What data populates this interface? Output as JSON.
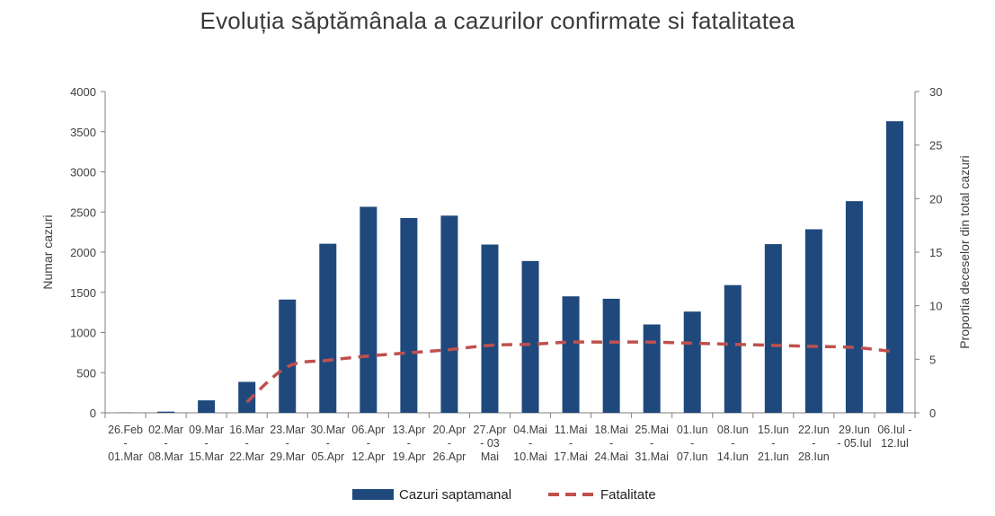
{
  "chart_data": {
    "type": "bar",
    "title": "Evoluția săptămânala a cazurilor confirmate si fatalitatea",
    "ylabel": "Numar cazuri",
    "y2label": "Proportia deceselor din total cazuri",
    "ylim": [
      0,
      4000
    ],
    "y2lim": [
      0,
      30
    ],
    "yticks": [
      "0",
      "500",
      "1000",
      "1500",
      "2000",
      "2500",
      "3000",
      "3500",
      "4000"
    ],
    "y2ticks": [
      "0",
      "5",
      "10",
      "15",
      "20",
      "25",
      "30"
    ],
    "categories": [
      [
        "26.Feb",
        "-",
        "01.Mar"
      ],
      [
        "02.Mar",
        "-",
        "08.Mar"
      ],
      [
        "09.Mar",
        "-",
        "15.Mar"
      ],
      [
        "16.Mar",
        "-",
        "22.Mar"
      ],
      [
        "23.Mar",
        "-",
        "29.Mar"
      ],
      [
        "30.Mar",
        "-",
        "05.Apr"
      ],
      [
        "06.Apr",
        "-",
        "12.Apr"
      ],
      [
        "13.Apr",
        "-",
        "19.Apr"
      ],
      [
        "20.Apr",
        "-",
        "26.Apr"
      ],
      [
        "27.Apr",
        "- 03",
        "Mai"
      ],
      [
        "04.Mai",
        "-",
        "10.Mai"
      ],
      [
        "11.Mai",
        "-",
        "17.Mai"
      ],
      [
        "18.Mai",
        "-",
        "24.Mai"
      ],
      [
        "25.Mai",
        "-",
        "31.Mai"
      ],
      [
        "01.Iun",
        "-",
        "07.Iun"
      ],
      [
        "08.Iun",
        "-",
        "14.Iun"
      ],
      [
        "15.Iun",
        "-",
        "21.Iun"
      ],
      [
        "22.Iun",
        "-",
        "28.Iun"
      ],
      [
        "29.Iun",
        "- 05.Iul",
        ""
      ],
      [
        "06.Iul -",
        "12.Iul",
        ""
      ]
    ],
    "series": [
      {
        "name": "Cazuri saptamanal",
        "type": "bar",
        "axis": "left",
        "color": "#1f497d",
        "values": [
          3,
          15,
          155,
          385,
          1410,
          2105,
          2565,
          2425,
          2455,
          2095,
          1890,
          1450,
          1420,
          1100,
          1260,
          1590,
          2100,
          2285,
          2635,
          3630
        ]
      },
      {
        "name": "Fatalitate",
        "type": "line",
        "axis": "right",
        "style": "dashed",
        "color": "#c0504d",
        "values": [
          null,
          null,
          null,
          1.0,
          4.3,
          4.9,
          5.3,
          5.6,
          5.9,
          6.3,
          6.4,
          6.6,
          6.6,
          6.6,
          6.5,
          6.4,
          6.3,
          6.2,
          6.1,
          5.7
        ]
      }
    ],
    "legend": [
      {
        "label": "Cazuri saptamanal",
        "kind": "bar"
      },
      {
        "label": "Fatalitate",
        "kind": "dashed-line"
      }
    ]
  }
}
